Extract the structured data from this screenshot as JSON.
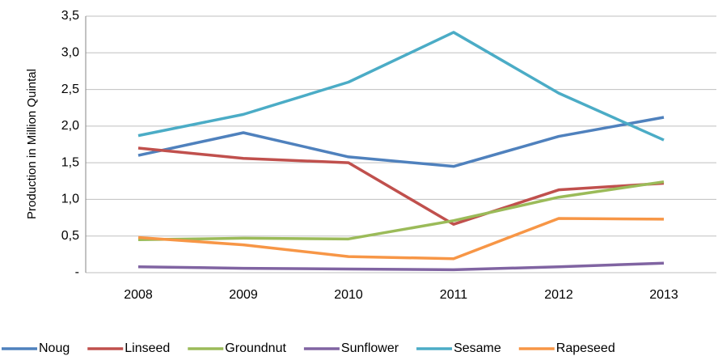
{
  "chart_data": {
    "type": "line",
    "y_label": "Production in Million Quintal",
    "categories": [
      "2008",
      "2009",
      "2010",
      "2011",
      "2012",
      "2013"
    ],
    "series": [
      {
        "name": "Noug",
        "color": "#4F81BD",
        "values": [
          1.6,
          1.91,
          1.58,
          1.45,
          1.86,
          2.12
        ]
      },
      {
        "name": "Linseed",
        "color": "#C0504D",
        "values": [
          1.7,
          1.56,
          1.5,
          0.66,
          1.13,
          1.22
        ]
      },
      {
        "name": "Groundnut",
        "color": "#9BBB59",
        "values": [
          0.45,
          0.47,
          0.46,
          0.71,
          1.03,
          1.24
        ]
      },
      {
        "name": "Sunflower",
        "color": "#8064A2",
        "values": [
          0.08,
          0.06,
          0.05,
          0.04,
          0.08,
          0.13
        ]
      },
      {
        "name": "Sesame",
        "color": "#4BACC6",
        "values": [
          1.87,
          2.16,
          2.6,
          3.28,
          2.45,
          1.81
        ]
      },
      {
        "name": "Rapeseed",
        "color": "#F79646",
        "values": [
          0.48,
          0.38,
          0.22,
          0.19,
          0.74,
          0.73
        ]
      }
    ],
    "ylim": [
      0,
      3.5
    ],
    "yticks": [
      {
        "value": 0,
        "label": "-"
      },
      {
        "value": 0.5,
        "label": "0,5"
      },
      {
        "value": 1,
        "label": "1,0"
      },
      {
        "value": 1.5,
        "label": "1,5"
      },
      {
        "value": 2,
        "label": "2,0"
      },
      {
        "value": 2.5,
        "label": "2,5"
      },
      {
        "value": 3,
        "label": "3,0"
      },
      {
        "value": 3.5,
        "label": "3,5"
      }
    ],
    "grid": true,
    "legend": "bottom"
  }
}
